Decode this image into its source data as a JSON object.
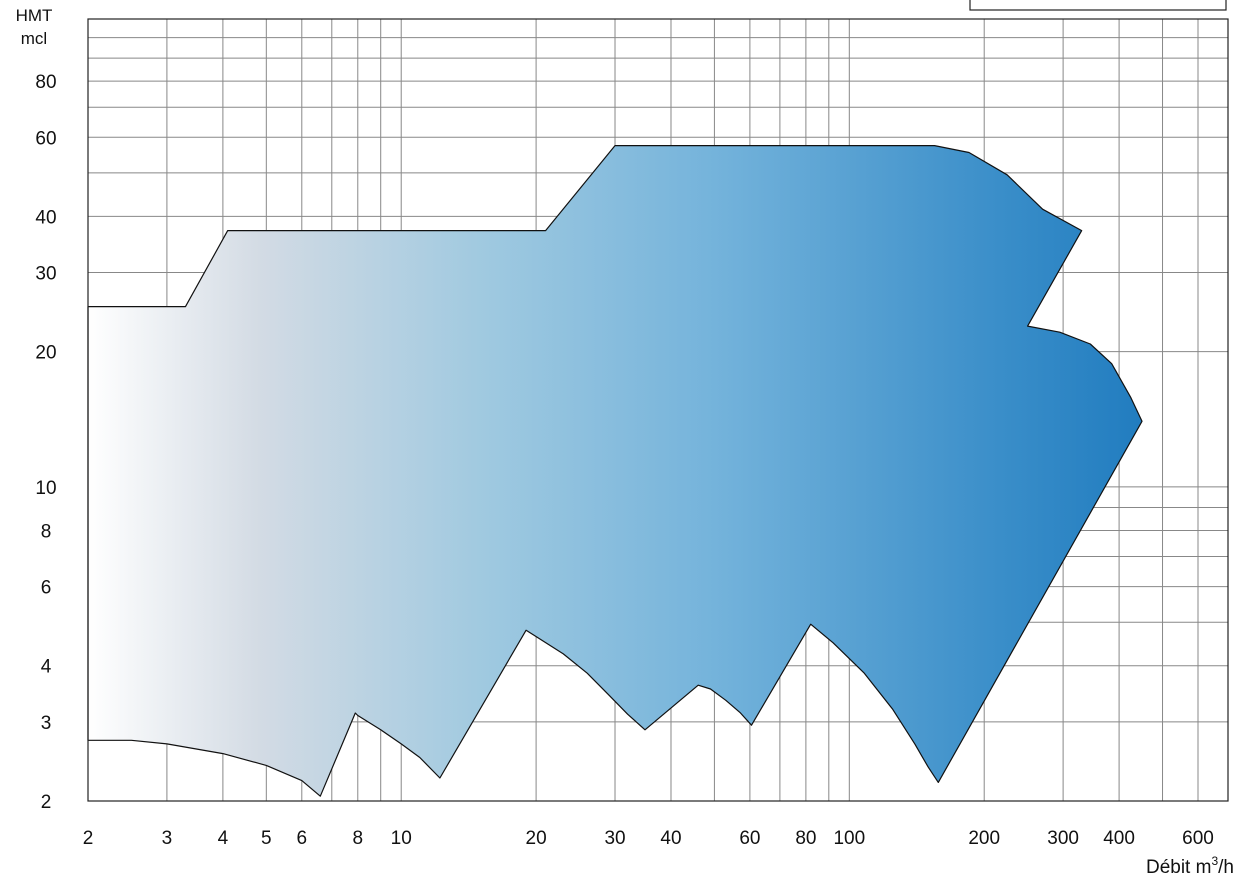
{
  "chart_data": {
    "type": "area",
    "title": "",
    "ylabel_line1": "HMT",
    "ylabel_line2": "mcl",
    "xlabel_text": "Débit m",
    "xlabel_sup": "3",
    "xlabel_tail": "/h",
    "x_scale": "log",
    "y_scale": "log",
    "xlim": [
      2,
      700
    ],
    "ylim": [
      2,
      110
    ],
    "grid": true,
    "legend": "none",
    "x_grid_values": [
      2,
      3,
      4,
      5,
      6,
      7,
      8,
      9,
      10,
      20,
      30,
      40,
      50,
      60,
      70,
      80,
      90,
      100,
      200,
      300,
      400,
      500,
      600,
      700
    ],
    "y_grid_values": [
      2,
      3,
      4,
      5,
      6,
      7,
      8,
      9,
      10,
      20,
      30,
      40,
      50,
      60,
      70,
      80,
      90,
      100
    ],
    "x_tick_labels": [
      {
        "value": 2,
        "label": "2"
      },
      {
        "value": 3,
        "label": "3"
      },
      {
        "value": 4,
        "label": "4"
      },
      {
        "value": 5,
        "label": "5"
      },
      {
        "value": 6,
        "label": "6"
      },
      {
        "value": 8,
        "label": "8"
      },
      {
        "value": 10,
        "label": "10"
      },
      {
        "value": 20,
        "label": "20"
      },
      {
        "value": 30,
        "label": "30"
      },
      {
        "value": 40,
        "label": "40"
      },
      {
        "value": 60,
        "label": "60"
      },
      {
        "value": 80,
        "label": "80"
      },
      {
        "value": 100,
        "label": "100"
      },
      {
        "value": 200,
        "label": "200"
      },
      {
        "value": 300,
        "label": "300"
      },
      {
        "value": 400,
        "label": "400"
      },
      {
        "value": 600,
        "label": "600"
      }
    ],
    "y_tick_labels": [
      {
        "value": 2,
        "label": "2"
      },
      {
        "value": 3,
        "label": "3"
      },
      {
        "value": 4,
        "label": "4"
      },
      {
        "value": 6,
        "label": "6"
      },
      {
        "value": 8,
        "label": "8"
      },
      {
        "value": 10,
        "label": "10"
      },
      {
        "value": 20,
        "label": "20"
      },
      {
        "value": 30,
        "label": "30"
      },
      {
        "value": 40,
        "label": "40"
      },
      {
        "value": 60,
        "label": "60"
      },
      {
        "value": 80,
        "label": "80"
      }
    ],
    "fill_colors": [
      "#ffffff",
      "#d3dbe4",
      "#9fc9e0",
      "#74b3db",
      "#3a8ec9",
      "#1272ba"
    ],
    "outline_color": "#111111",
    "grid_color": "#888888",
    "series": [
      {
        "points": [
          [
            2,
            25.2
          ],
          [
            3.3,
            25.2
          ],
          [
            4.1,
            37.2
          ],
          [
            21,
            37.2
          ],
          [
            30,
            57.5
          ],
          [
            155,
            57.5
          ],
          [
            185,
            55.5
          ],
          [
            225,
            49.5
          ],
          [
            270,
            41.5
          ],
          [
            330,
            37.2
          ],
          [
            250,
            22.8
          ],
          [
            295,
            22.1
          ],
          [
            345,
            20.8
          ],
          [
            385,
            18.8
          ],
          [
            425,
            15.8
          ],
          [
            450,
            14
          ],
          [
            158,
            2.2
          ],
          [
            150,
            2.38
          ],
          [
            140,
            2.68
          ],
          [
            125,
            3.2
          ],
          [
            108,
            3.85
          ],
          [
            92,
            4.5
          ],
          [
            82,
            4.95
          ],
          [
            60.5,
            2.95
          ],
          [
            57,
            3.15
          ],
          [
            53,
            3.35
          ],
          [
            49,
            3.55
          ],
          [
            46,
            3.62
          ],
          [
            35,
            2.88
          ],
          [
            32,
            3.12
          ],
          [
            29,
            3.45
          ],
          [
            26,
            3.85
          ],
          [
            23,
            4.25
          ],
          [
            19,
            4.8
          ],
          [
            12.2,
            2.25
          ],
          [
            11,
            2.5
          ],
          [
            10,
            2.68
          ],
          [
            9,
            2.88
          ],
          [
            8,
            3.1
          ],
          [
            7.9,
            3.14
          ],
          [
            6.6,
            2.05
          ],
          [
            6,
            2.22
          ],
          [
            5,
            2.4
          ],
          [
            4,
            2.55
          ],
          [
            3,
            2.68
          ],
          [
            2.5,
            2.73
          ],
          [
            2,
            2.73
          ]
        ]
      }
    ]
  }
}
